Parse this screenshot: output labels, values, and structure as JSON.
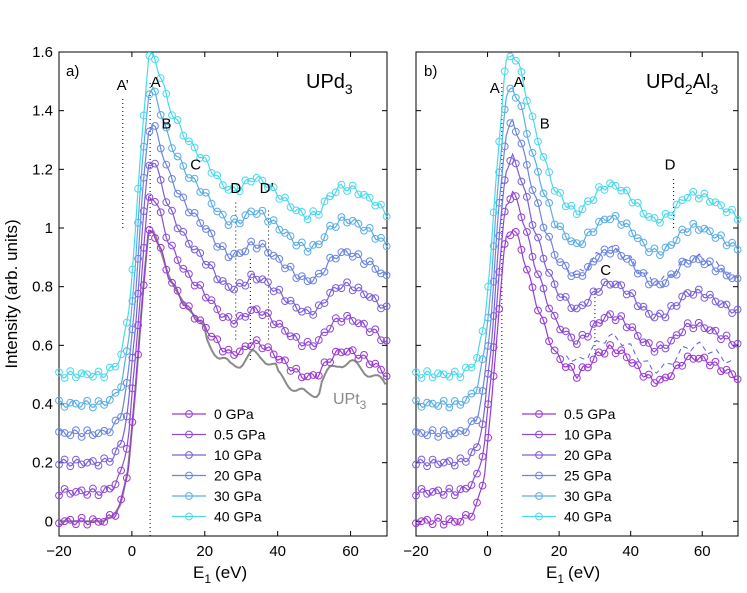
{
  "colors": {
    "s0": "#9b39d6",
    "s1": "#8e4ad8",
    "s2": "#7d60da",
    "s3": "#6c86e0",
    "s4": "#5aaee6",
    "s5": "#4cd8ec",
    "ref": "#8a8a8a",
    "axis": "#000000"
  },
  "chart_data": [
    {
      "type": "line",
      "panel": "a)",
      "title": "UPd3",
      "title_main": "UPd",
      "title_sub": "3",
      "xlabel": "E",
      "xlabel_sub": "1",
      "xlabel_unit": "(eV)",
      "ylabel": "Intensity (arb. units)",
      "xlim": [
        -20,
        70
      ],
      "ylim": [
        -0.05,
        1.6
      ],
      "xticks": [
        -20,
        0,
        20,
        40,
        60
      ],
      "xtick_labels": [
        "−20",
        "0",
        "20",
        "40",
        "60"
      ],
      "yticks": [
        0,
        0.2,
        0.4,
        0.6,
        0.8,
        1,
        1.2,
        1.4,
        1.6
      ],
      "ytick_labels": [
        "0",
        "0.2",
        "0.4",
        "0.6",
        "0.8",
        "1",
        "1.2",
        "1.4",
        "1.6"
      ],
      "legend_position": "lower-middle",
      "series": [
        {
          "name": "0 GPa",
          "offset": 0.0
        },
        {
          "name": "0.5 GPa",
          "offset": 0.1
        },
        {
          "name": "10 GPa",
          "offset": 0.2
        },
        {
          "name": "20 GPa",
          "offset": 0.3
        },
        {
          "name": "30 GPa",
          "offset": 0.4
        },
        {
          "name": "40 GPa",
          "offset": 0.5
        }
      ],
      "reference": {
        "name": "UPt3",
        "label_main": "UPt",
        "label_sub": "3"
      },
      "annotations": [
        {
          "text": "A’",
          "x": -2.5,
          "y": 1.47
        },
        {
          "text": "A",
          "x": 6.5,
          "y": 1.48
        },
        {
          "text": "B",
          "x": 9.5,
          "y": 1.34
        },
        {
          "text": "C",
          "x": 17.5,
          "y": 1.2
        },
        {
          "text": "D",
          "x": 28.5,
          "y": 1.12
        },
        {
          "text": "D’",
          "x": 37,
          "y": 1.12
        }
      ],
      "profile": {
        "x": [
          -20,
          -8,
          -5,
          -3,
          -1,
          1,
          3,
          4.5,
          6,
          8,
          10,
          12,
          15,
          18,
          21,
          24,
          27,
          30,
          33,
          36,
          39,
          42,
          45,
          48,
          51,
          54,
          57,
          60,
          63,
          66,
          70
        ],
        "y": [
          0.0,
          0.0,
          0.02,
          0.06,
          0.18,
          0.45,
          0.78,
          0.98,
          0.99,
          0.92,
          0.84,
          0.79,
          0.73,
          0.69,
          0.65,
          0.6,
          0.57,
          0.58,
          0.61,
          0.6,
          0.57,
          0.54,
          0.51,
          0.49,
          0.5,
          0.55,
          0.58,
          0.58,
          0.56,
          0.54,
          0.5
        ]
      }
    },
    {
      "type": "line",
      "panel": "b)",
      "title": "UPd2Al3",
      "title_main": "UPd",
      "title_sub": "2",
      "title_main2": "Al",
      "title_sub2": "3",
      "xlabel": "E",
      "xlabel_sub": "1",
      "xlabel_unit": "(eV)",
      "xlim": [
        -20,
        70
      ],
      "ylim": [
        -0.05,
        1.6
      ],
      "xticks": [
        -20,
        0,
        20,
        40,
        60
      ],
      "xtick_labels": [
        "−20",
        "0",
        "20",
        "40",
        "60"
      ],
      "legend_position": "lower-middle",
      "series": [
        {
          "name": "0.5 GPa",
          "offset": 0.0
        },
        {
          "name": "10 GPa",
          "offset": 0.1
        },
        {
          "name": "20 GPa",
          "offset": 0.2
        },
        {
          "name": "25 GPa",
          "offset": 0.3
        },
        {
          "name": "30 GPa",
          "offset": 0.4
        },
        {
          "name": "40 GPa",
          "offset": 0.5
        }
      ],
      "annotations": [
        {
          "text": "A",
          "x": 2,
          "y": 1.46
        },
        {
          "text": "A’",
          "x": 9,
          "y": 1.48
        },
        {
          "text": "B",
          "x": 16,
          "y": 1.34
        },
        {
          "text": "C",
          "x": 33,
          "y": 0.84
        },
        {
          "text": "D",
          "x": 51,
          "y": 1.2
        }
      ],
      "profile": {
        "x": [
          -20,
          -8,
          -5,
          -3,
          -1,
          1,
          3,
          5,
          7,
          9,
          11,
          13,
          16,
          19,
          22,
          25,
          28,
          31,
          34,
          37,
          40,
          43,
          46,
          49,
          52,
          55,
          58,
          61,
          64,
          67,
          70
        ],
        "y": [
          0.0,
          0.0,
          0.02,
          0.05,
          0.15,
          0.38,
          0.7,
          0.96,
          1.0,
          0.95,
          0.86,
          0.77,
          0.66,
          0.57,
          0.53,
          0.5,
          0.53,
          0.57,
          0.59,
          0.58,
          0.55,
          0.51,
          0.48,
          0.48,
          0.51,
          0.55,
          0.56,
          0.55,
          0.53,
          0.51,
          0.49
        ]
      }
    }
  ]
}
